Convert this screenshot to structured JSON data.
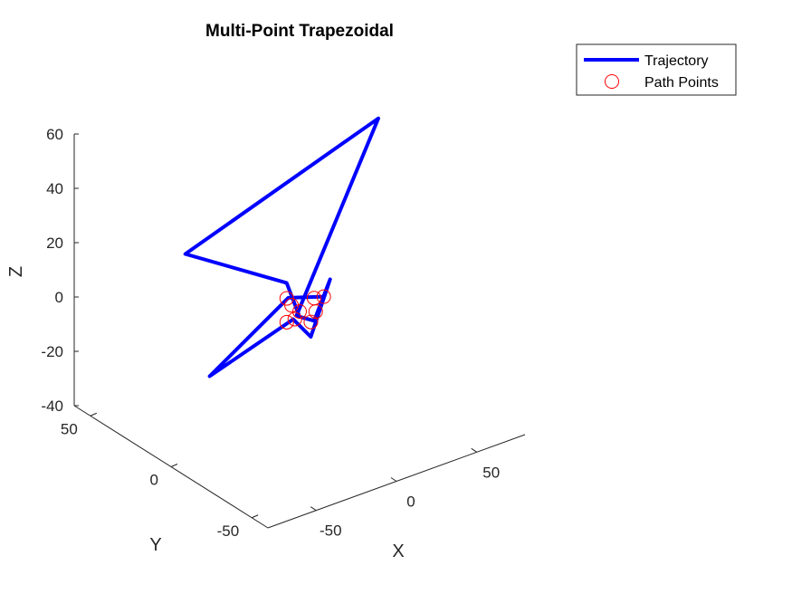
{
  "chart_data": {
    "type": "line3d",
    "title": "Multi-Point Trapezoidal",
    "xlabel": "X",
    "ylabel": "Y",
    "zlabel": "Z",
    "xlim": [
      -80,
      80
    ],
    "ylim": [
      -60,
      60
    ],
    "zlim": [
      -40,
      60
    ],
    "x_ticks": [
      "-50",
      "0",
      "50"
    ],
    "y_ticks": [
      "-50",
      "0",
      "50"
    ],
    "z_ticks": [
      "-40",
      "-20",
      "0",
      "20",
      "40",
      "60"
    ],
    "grid": false,
    "legend_position": "top-right",
    "series": [
      {
        "name": "Trajectory",
        "kind": "line",
        "color": "#0000ff",
        "points": [
          [
            0,
            0,
            -2
          ],
          [
            6,
            14,
            4
          ],
          [
            -33,
            38,
            14
          ],
          [
            50,
            1,
            60
          ],
          [
            -4,
            -2,
            0
          ],
          [
            5,
            -4,
            -3
          ],
          [
            22,
            3,
            6
          ],
          [
            9,
            2,
            -12
          ],
          [
            -4,
            0,
            -2
          ],
          [
            -54,
            2,
            -13
          ],
          [
            -1,
            6,
            3
          ],
          [
            12,
            -3,
            4
          ]
        ]
      },
      {
        "name": "Path Points",
        "kind": "marker",
        "marker": "circle",
        "color": "#ff0000",
        "points": [
          [
            0,
            0,
            0
          ],
          [
            -1,
            4,
            1
          ],
          [
            9,
            0,
            3
          ],
          [
            12,
            -3,
            4
          ],
          [
            8,
            -2,
            -1
          ],
          [
            -5,
            -2,
            -1
          ],
          [
            -2,
            6,
            3
          ],
          [
            3,
            -4,
            -3
          ],
          [
            -5,
            3,
            -4
          ]
        ]
      }
    ]
  }
}
